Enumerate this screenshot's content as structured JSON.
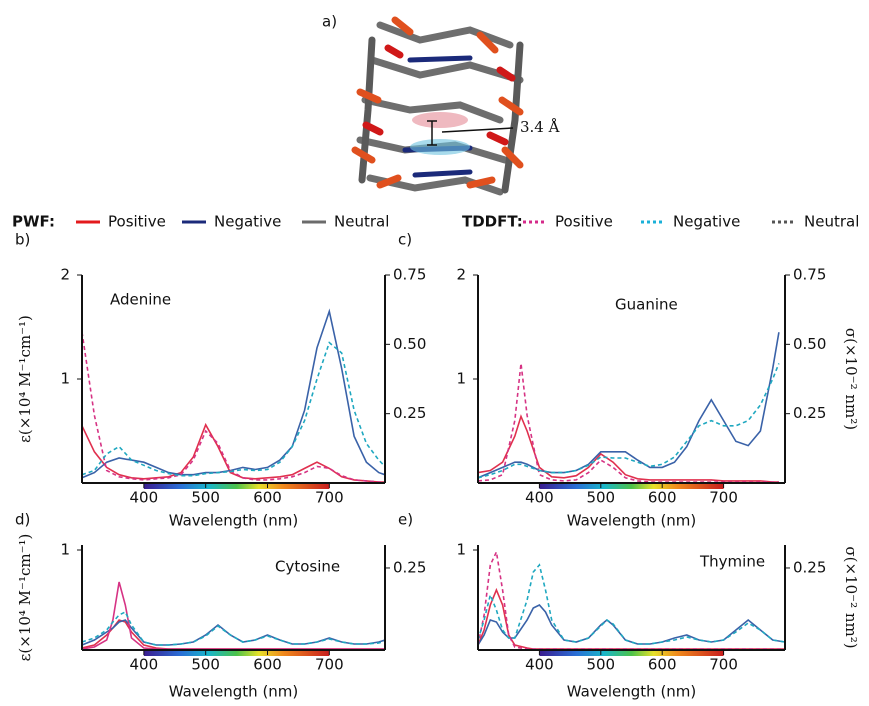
{
  "figure": {
    "label": "a)",
    "distance": "3.4 Å"
  },
  "legend": {
    "groups": [
      {
        "title": "PWF:",
        "line_style": "solid",
        "entries": [
          {
            "name": "Positive",
            "color": "#e31a1c"
          },
          {
            "name": "Negative",
            "color": "#1b2a7a"
          },
          {
            "name": "Neutral",
            "color": "#6b6b6b"
          }
        ]
      },
      {
        "title": "TDDFT:",
        "line_style": "dotted",
        "entries": [
          {
            "name": "Positive",
            "color": "#d42a8a"
          },
          {
            "name": "Negative",
            "color": "#1ab0d8"
          },
          {
            "name": "Neutral",
            "color": "#555555"
          }
        ]
      }
    ]
  },
  "chart_data": [
    {
      "type": "line",
      "label": "b)",
      "title": "Adenine",
      "xlabel": "Wavelength (nm)",
      "ylabel": "ε(×10⁴ M⁻¹cm⁻¹)",
      "xlim": [
        300,
        790
      ],
      "xticks": [
        400,
        500,
        600,
        700
      ],
      "ylim": [
        0,
        2
      ],
      "yticks": [
        1,
        2
      ],
      "y2lim": [
        0,
        0.75
      ],
      "y2ticks": [
        0.25,
        {
          "value": 0.5,
          "label": "0.50"
        },
        0.75
      ],
      "x": [
        300,
        320,
        340,
        360,
        380,
        400,
        420,
        440,
        460,
        480,
        500,
        520,
        540,
        560,
        580,
        600,
        620,
        640,
        660,
        680,
        700,
        720,
        740,
        760,
        780,
        790
      ],
      "series": [
        {
          "color": "#e0304e",
          "style": "solid",
          "values": [
            0.55,
            0.3,
            0.15,
            0.08,
            0.05,
            0.04,
            0.05,
            0.06,
            0.1,
            0.25,
            0.56,
            0.35,
            0.1,
            0.05,
            0.04,
            0.05,
            0.06,
            0.08,
            0.14,
            0.2,
            0.14,
            0.06,
            0.03,
            0.02,
            0.01,
            0.01
          ]
        },
        {
          "color": "#3a62a8",
          "style": "solid",
          "values": [
            0.05,
            0.1,
            0.2,
            0.24,
            0.22,
            0.2,
            0.15,
            0.1,
            0.08,
            0.08,
            0.1,
            0.1,
            0.12,
            0.15,
            0.13,
            0.15,
            0.22,
            0.35,
            0.7,
            1.3,
            1.65,
            1.1,
            0.45,
            0.2,
            0.1,
            0.08
          ]
        },
        {
          "color": "#d63384",
          "style": "dashed",
          "values": [
            1.45,
            0.65,
            0.12,
            0.06,
            0.04,
            0.03,
            0.04,
            0.05,
            0.08,
            0.22,
            0.5,
            0.38,
            0.12,
            0.05,
            0.03,
            0.03,
            0.04,
            0.06,
            0.1,
            0.16,
            0.14,
            0.07,
            0.03,
            0.02,
            0.01,
            0.01
          ]
        },
        {
          "color": "#1fa8c0",
          "style": "dashed",
          "values": [
            0.08,
            0.12,
            0.28,
            0.35,
            0.22,
            0.17,
            0.12,
            0.09,
            0.07,
            0.07,
            0.09,
            0.1,
            0.11,
            0.13,
            0.12,
            0.13,
            0.2,
            0.35,
            0.6,
            1.0,
            1.35,
            1.25,
            0.7,
            0.38,
            0.22,
            0.16
          ]
        }
      ]
    },
    {
      "type": "line",
      "label": "c)",
      "title": "Guanine",
      "xlabel": "Wavelength (nm)",
      "y2label": "σ(×10⁻² nm²)",
      "xlim": [
        300,
        800
      ],
      "xticks": [
        400,
        500,
        600,
        700
      ],
      "ylim": [
        0,
        2
      ],
      "yticks": [
        1,
        2
      ],
      "y2lim": [
        0,
        0.75
      ],
      "y2ticks": [
        0.25,
        {
          "value": 0.5,
          "label": "0.50"
        },
        0.75
      ],
      "x": [
        300,
        320,
        340,
        360,
        370,
        380,
        400,
        420,
        440,
        460,
        480,
        500,
        520,
        540,
        560,
        580,
        600,
        620,
        640,
        660,
        680,
        700,
        720,
        740,
        760,
        780,
        790
      ],
      "series": [
        {
          "color": "#e0304e",
          "style": "solid",
          "values": [
            0.1,
            0.12,
            0.2,
            0.45,
            0.64,
            0.5,
            0.15,
            0.06,
            0.05,
            0.07,
            0.15,
            0.28,
            0.2,
            0.08,
            0.04,
            0.03,
            0.03,
            0.03,
            0.03,
            0.03,
            0.03,
            0.02,
            0.02,
            0.02,
            0.02,
            0.01,
            0.01
          ]
        },
        {
          "color": "#3a62a8",
          "style": "solid",
          "values": [
            0.05,
            0.1,
            0.15,
            0.2,
            0.2,
            0.18,
            0.12,
            0.1,
            0.1,
            0.12,
            0.18,
            0.3,
            0.3,
            0.3,
            0.22,
            0.15,
            0.15,
            0.2,
            0.35,
            0.6,
            0.8,
            0.6,
            0.4,
            0.36,
            0.5,
            1.1,
            1.45
          ]
        },
        {
          "color": "#d63384",
          "style": "dashed",
          "values": [
            0.02,
            0.03,
            0.08,
            0.6,
            1.15,
            0.65,
            0.08,
            0.03,
            0.02,
            0.03,
            0.1,
            0.22,
            0.15,
            0.05,
            0.02,
            0.01,
            0.01,
            0.01,
            0.01,
            0.01,
            0.01,
            0.01,
            0.01,
            0.01,
            0.01,
            0.01,
            0.01
          ]
        },
        {
          "color": "#1fa8c0",
          "style": "dashed",
          "values": [
            0.05,
            0.08,
            0.12,
            0.18,
            0.18,
            0.16,
            0.12,
            0.1,
            0.1,
            0.12,
            0.17,
            0.25,
            0.24,
            0.24,
            0.2,
            0.16,
            0.18,
            0.25,
            0.4,
            0.55,
            0.6,
            0.55,
            0.55,
            0.6,
            0.75,
            1.0,
            1.15
          ]
        }
      ]
    },
    {
      "type": "line",
      "label": "d)",
      "title": "Cytosine",
      "xlabel": "Wavelength (nm)",
      "ylabel": "ε(×10⁴ M⁻¹cm⁻¹)",
      "xlim": [
        300,
        790
      ],
      "xticks": [
        400,
        500,
        600,
        700
      ],
      "ylim": [
        0,
        1.05
      ],
      "yticks": [
        1
      ],
      "y2lim": [
        0,
        0.32
      ],
      "y2ticks": [
        0.25
      ],
      "x": [
        300,
        320,
        340,
        350,
        360,
        370,
        380,
        400,
        420,
        440,
        460,
        480,
        500,
        520,
        540,
        560,
        580,
        600,
        620,
        640,
        660,
        680,
        700,
        720,
        740,
        760,
        780,
        790
      ],
      "series": [
        {
          "color": "#e0304e",
          "style": "solid",
          "values": [
            0.02,
            0.05,
            0.15,
            0.22,
            0.3,
            0.28,
            0.18,
            0.05,
            0.02,
            0.01,
            0.01,
            0.01,
            0.01,
            0.01,
            0.01,
            0.01,
            0.01,
            0.01,
            0.01,
            0.01,
            0.01,
            0.01,
            0.01,
            0.01,
            0.01,
            0.01,
            0.01,
            0.01
          ]
        },
        {
          "color": "#3a62a8",
          "style": "solid",
          "values": [
            0.05,
            0.1,
            0.18,
            0.22,
            0.28,
            0.3,
            0.22,
            0.08,
            0.05,
            0.05,
            0.06,
            0.08,
            0.15,
            0.25,
            0.15,
            0.08,
            0.1,
            0.15,
            0.1,
            0.06,
            0.06,
            0.08,
            0.12,
            0.08,
            0.06,
            0.06,
            0.08,
            0.1
          ]
        },
        {
          "color": "#d63384",
          "style": "solid",
          "values": [
            0.01,
            0.03,
            0.1,
            0.3,
            0.68,
            0.45,
            0.12,
            0.02,
            0.01,
            0.01,
            0.01,
            0.01,
            0.01,
            0.01,
            0.01,
            0.01,
            0.01,
            0.01,
            0.01,
            0.01,
            0.01,
            0.01,
            0.01,
            0.01,
            0.01,
            0.01,
            0.01,
            0.01
          ]
        },
        {
          "color": "#1fa8c0",
          "style": "dashed",
          "values": [
            0.08,
            0.12,
            0.2,
            0.28,
            0.35,
            0.38,
            0.25,
            0.08,
            0.05,
            0.05,
            0.06,
            0.08,
            0.14,
            0.24,
            0.15,
            0.08,
            0.1,
            0.14,
            0.1,
            0.06,
            0.06,
            0.08,
            0.11,
            0.08,
            0.06,
            0.06,
            0.07,
            0.09
          ]
        }
      ]
    },
    {
      "type": "line",
      "label": "e)",
      "title": "Thymine",
      "xlabel": "Wavelength (nm)",
      "y2label": "σ(×10⁻² nm²)",
      "xlim": [
        300,
        800
      ],
      "xticks": [
        400,
        500,
        600,
        700
      ],
      "ylim": [
        0,
        1.05
      ],
      "yticks": [
        1
      ],
      "y2lim": [
        0,
        0.32
      ],
      "y2ticks": [
        0.25
      ],
      "x": [
        300,
        310,
        320,
        330,
        340,
        350,
        360,
        380,
        390,
        400,
        410,
        420,
        440,
        460,
        480,
        500,
        510,
        520,
        540,
        560,
        580,
        600,
        620,
        640,
        660,
        680,
        700,
        720,
        740,
        760,
        780,
        800
      ],
      "series": [
        {
          "color": "#e0304e",
          "style": "solid",
          "values": [
            0.05,
            0.2,
            0.45,
            0.6,
            0.45,
            0.15,
            0.05,
            0.02,
            0.01,
            0.01,
            0.01,
            0.01,
            0.01,
            0.01,
            0.01,
            0.01,
            0.01,
            0.01,
            0.01,
            0.01,
            0.01,
            0.01,
            0.01,
            0.01,
            0.01,
            0.01,
            0.01,
            0.01,
            0.01,
            0.01,
            0.01,
            0.01
          ]
        },
        {
          "color": "#3a62a8",
          "style": "solid",
          "values": [
            0.05,
            0.15,
            0.3,
            0.28,
            0.18,
            0.12,
            0.12,
            0.3,
            0.42,
            0.45,
            0.38,
            0.25,
            0.1,
            0.08,
            0.12,
            0.25,
            0.3,
            0.25,
            0.1,
            0.06,
            0.06,
            0.08,
            0.12,
            0.15,
            0.1,
            0.08,
            0.1,
            0.2,
            0.3,
            0.2,
            0.1,
            0.08
          ]
        },
        {
          "color": "#d63384",
          "style": "dashed",
          "values": [
            0.05,
            0.35,
            0.85,
            0.98,
            0.6,
            0.15,
            0.03,
            0.01,
            0.01,
            0.01,
            0.01,
            0.01,
            0.01,
            0.01,
            0.01,
            0.01,
            0.01,
            0.01,
            0.01,
            0.01,
            0.01,
            0.01,
            0.01,
            0.01,
            0.01,
            0.01,
            0.01,
            0.01,
            0.01,
            0.01,
            0.01,
            0.01
          ]
        },
        {
          "color": "#1fa8c0",
          "style": "dashed",
          "values": [
            0.1,
            0.3,
            0.55,
            0.4,
            0.2,
            0.12,
            0.12,
            0.5,
            0.78,
            0.85,
            0.6,
            0.3,
            0.1,
            0.08,
            0.12,
            0.24,
            0.3,
            0.26,
            0.1,
            0.06,
            0.06,
            0.08,
            0.1,
            0.13,
            0.1,
            0.08,
            0.1,
            0.18,
            0.27,
            0.2,
            0.1,
            0.08
          ]
        }
      ]
    }
  ]
}
